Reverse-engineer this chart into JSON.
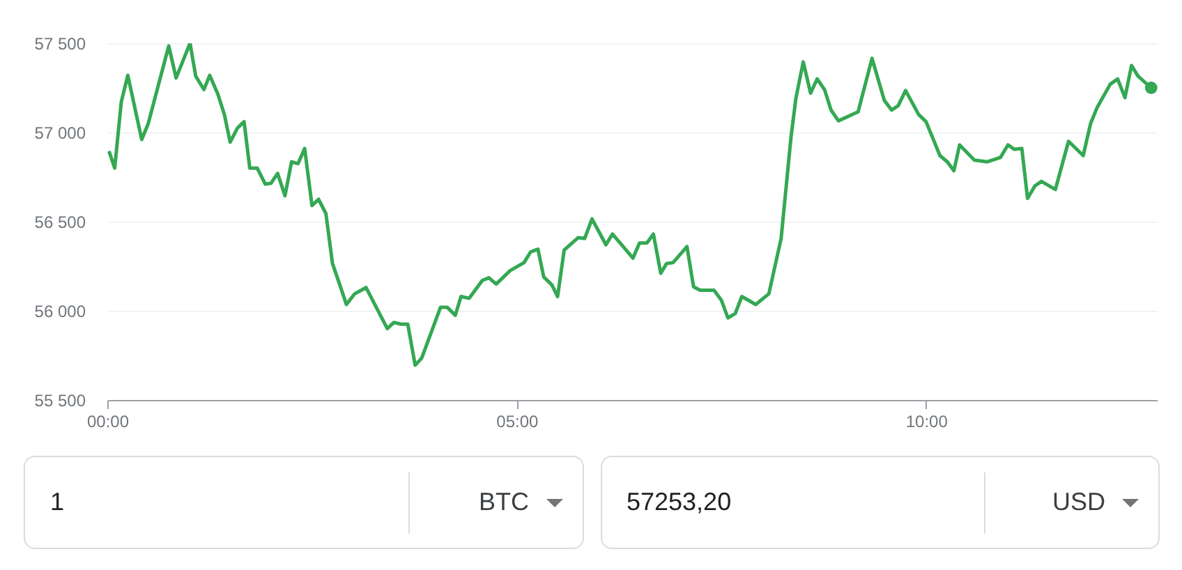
{
  "chart_data": {
    "type": "line",
    "x": [
      0.02,
      0.09,
      0.17,
      0.25,
      0.42,
      0.5,
      0.75,
      0.84,
      1.01,
      1.08,
      1.18,
      1.25,
      1.35,
      1.43,
      1.5,
      1.59,
      1.67,
      1.74,
      1.83,
      1.93,
      2.0,
      2.08,
      2.17,
      2.25,
      2.33,
      2.41,
      2.5,
      2.58,
      2.67,
      2.75,
      2.84,
      2.92,
      3.02,
      3.16,
      3.42,
      3.5,
      3.59,
      3.67,
      3.76,
      3.84,
      4.07,
      4.15,
      4.25,
      4.32,
      4.42,
      4.58,
      4.66,
      4.75,
      4.92,
      5.09,
      5.17,
      5.26,
      5.33,
      5.43,
      5.5,
      5.58,
      5.75,
      5.83,
      5.92,
      6.09,
      6.17,
      6.42,
      6.5,
      6.59,
      6.67,
      6.76,
      6.83,
      6.91,
      7.08,
      7.16,
      7.24,
      7.41,
      7.5,
      7.58,
      7.67,
      7.75,
      7.92,
      8.08,
      8.23,
      8.35,
      8.41,
      8.5,
      8.59,
      8.67,
      8.76,
      8.84,
      8.93,
      9.17,
      9.34,
      9.49,
      9.58,
      9.66,
      9.75,
      9.91,
      10.0,
      10.17,
      10.26,
      10.34,
      10.41,
      10.59,
      10.75,
      10.91,
      11.0,
      11.08,
      11.17,
      11.24,
      11.33,
      11.41,
      11.58,
      11.74,
      11.92,
      12.01,
      12.09,
      12.25,
      12.34,
      12.43,
      12.51,
      12.59,
      12.75
    ],
    "series": [
      {
        "color": "#34a853",
        "values": [
          56895,
          56800,
          57170,
          57320,
          56960,
          57050,
          57485,
          57305,
          57500,
          57315,
          57240,
          57320,
          57215,
          57100,
          56945,
          57025,
          57060,
          56800,
          56800,
          56710,
          56715,
          56770,
          56645,
          56835,
          56825,
          56910,
          56590,
          56625,
          56545,
          56265,
          56145,
          56035,
          56095,
          56130,
          55900,
          55935,
          55925,
          55925,
          55695,
          55735,
          56020,
          56020,
          55975,
          56080,
          56070,
          56170,
          56185,
          56150,
          56225,
          56270,
          56330,
          56345,
          56190,
          56145,
          56080,
          56340,
          56410,
          56405,
          56515,
          56370,
          56430,
          56295,
          56380,
          56380,
          56430,
          56210,
          56265,
          56270,
          56360,
          56135,
          56115,
          56115,
          56060,
          55960,
          55985,
          56080,
          56035,
          56095,
          56405,
          56970,
          57190,
          57395,
          57220,
          57300,
          57240,
          57125,
          57065,
          57115,
          57415,
          57180,
          57125,
          57150,
          57235,
          57100,
          57060,
          56870,
          56835,
          56785,
          56930,
          56845,
          56835,
          56860,
          56930,
          56905,
          56910,
          56630,
          56700,
          56725,
          56680,
          56950,
          56870,
          57050,
          57140,
          57270,
          57300,
          57195,
          57375,
          57315,
          57250
        ]
      },
      {
        "type": "scatter",
        "color": "#34a853",
        "x": [
          12.75
        ],
        "values": [
          57250
        ]
      }
    ],
    "xlim": [
      0,
      12.82
    ],
    "xticks": [
      {
        "value": 0,
        "label": "00:00"
      },
      {
        "value": 5,
        "label": "05:00"
      },
      {
        "value": 10,
        "label": "10:00"
      }
    ],
    "ylim": [
      55500,
      57500
    ],
    "yticks": [
      {
        "value": 55500,
        "label": "55 500"
      },
      {
        "value": 56000,
        "label": "56 000"
      },
      {
        "value": 56500,
        "label": "56 500"
      },
      {
        "value": 57000,
        "label": "57 000"
      },
      {
        "value": 57500,
        "label": "57 500"
      }
    ],
    "grid": "y",
    "annotations": [
      "1",
      "BTC",
      "57253,20",
      "USD"
    ]
  }
}
